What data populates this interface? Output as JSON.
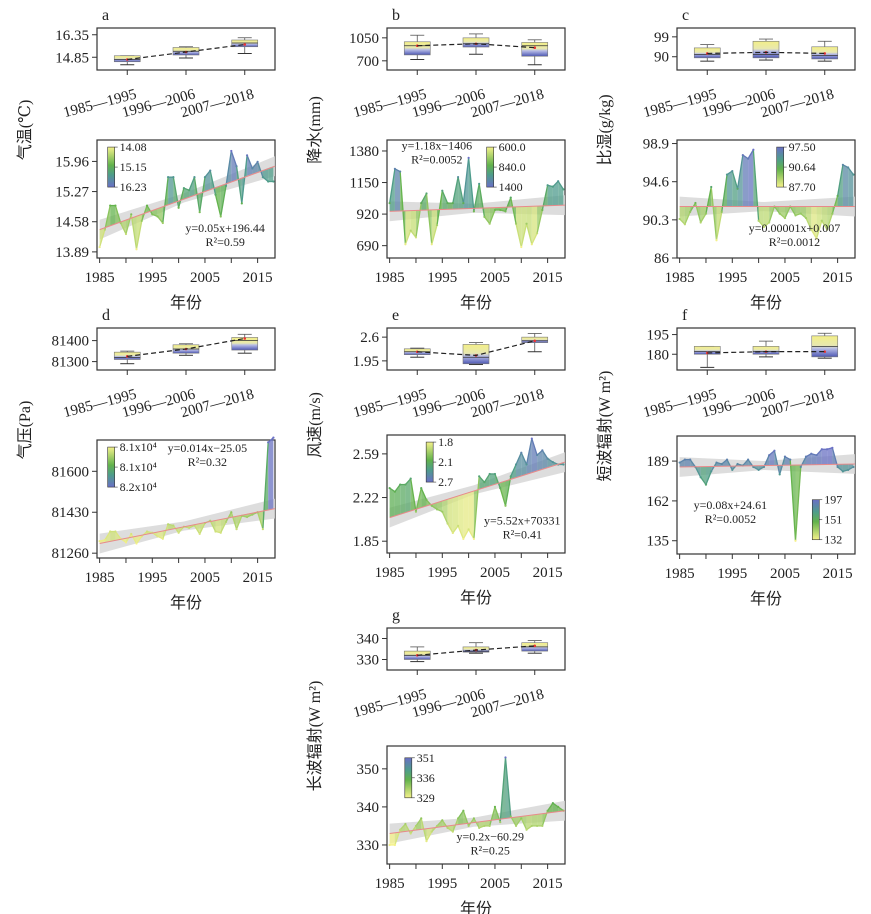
{
  "figure": {
    "xlabel": "年份",
    "period_labels": [
      "1985—1995",
      "1996—2006",
      "2007—2018"
    ],
    "colors": {
      "yellow": "#f3f08a",
      "green": "#5fb24f",
      "teal": "#4f9d8c",
      "blue": "#6a72c8",
      "trend": "#e88a8a",
      "band": "#d7d7d7"
    }
  },
  "chart_data": [
    {
      "panel": "a",
      "type": "line",
      "ylabel": "气温(℃)",
      "box": {
        "yticks": [
          14.85,
          16.35
        ],
        "ylim": [
          14.0,
          16.8
        ],
        "groups": [
          {
            "label": "1985—1995",
            "min": 14.35,
            "q1": 14.55,
            "median": 14.7,
            "q3": 14.95,
            "max": 14.95,
            "mean": 14.7
          },
          {
            "label": "1996—2006",
            "min": 14.8,
            "q1": 15.0,
            "median": 15.25,
            "q3": 15.5,
            "max": 15.55,
            "mean": 15.2
          },
          {
            "label": "2007—2018",
            "min": 15.1,
            "q1": 15.55,
            "median": 15.8,
            "q3": 16.0,
            "max": 16.15,
            "mean": 15.7
          }
        ]
      },
      "x": [
        1985,
        1986,
        1987,
        1988,
        1989,
        1990,
        1991,
        1992,
        1993,
        1994,
        1995,
        1996,
        1997,
        1998,
        1999,
        2000,
        2001,
        2002,
        2003,
        2004,
        2005,
        2006,
        2007,
        2008,
        2009,
        2010,
        2011,
        2012,
        2013,
        2014,
        2015,
        2016,
        2017,
        2018
      ],
      "values": [
        14.0,
        14.4,
        14.95,
        14.95,
        14.55,
        14.3,
        14.75,
        13.95,
        14.6,
        14.95,
        14.75,
        14.7,
        14.55,
        15.6,
        15.6,
        14.9,
        15.35,
        15.3,
        15.6,
        14.8,
        15.6,
        15.75,
        15.2,
        14.7,
        15.4,
        16.2,
        15.85,
        15.0,
        16.1,
        15.8,
        15.95,
        15.6,
        15.5,
        15.5
      ],
      "yticks": [
        13.89,
        14.58,
        15.27,
        15.96
      ],
      "ylim": [
        13.75,
        16.45
      ],
      "trend": {
        "start": 14.4,
        "end": 15.85
      },
      "equation": "y=0.05x+196.44",
      "r2": "R²=0.59",
      "colorbar": [
        "14.08",
        "15.15",
        "16.23"
      ]
    },
    {
      "panel": "b",
      "type": "line",
      "ylabel": "降水(mm)",
      "box": {
        "yticks": [
          700,
          1050
        ],
        "ylim": [
          560,
          1200
        ],
        "groups": [
          {
            "label": "1985—1995",
            "min": 720,
            "q1": 790,
            "median": 930,
            "q3": 990,
            "max": 1090,
            "mean": 930
          },
          {
            "label": "1996—2006",
            "min": 800,
            "q1": 910,
            "median": 960,
            "q3": 1050,
            "max": 1110,
            "mean": 960
          },
          {
            "label": "2007—2018",
            "min": 640,
            "q1": 770,
            "median": 930,
            "q3": 980,
            "max": 1020,
            "mean": 900
          }
        ]
      },
      "x": [
        1985,
        1986,
        1987,
        1988,
        1989,
        1990,
        1991,
        1992,
        1993,
        1994,
        1995,
        1996,
        1997,
        1998,
        1999,
        2000,
        2001,
        2002,
        2003,
        2004,
        2005,
        2006,
        2007,
        2008,
        2009,
        2010,
        2011,
        2012,
        2013,
        2014,
        2015,
        2016,
        2017,
        2018
      ],
      "values": [
        1000,
        1250,
        1230,
        700,
        800,
        750,
        1000,
        1070,
        700,
        840,
        1090,
        1000,
        1000,
        1190,
        1000,
        1330,
        940,
        1140,
        900,
        850,
        950,
        950,
        940,
        1040,
        850,
        680,
        850,
        700,
        780,
        950,
        1130,
        1120,
        1160,
        1100
      ],
      "yticks": [
        690,
        920,
        1150,
        1380
      ],
      "ylim": [
        600,
        1460
      ],
      "trend": {
        "start": 940,
        "end": 985
      },
      "equation": "y=1.18x−1406",
      "r2": "R²=0.0052",
      "colorbar": [
        "600.0",
        "840.0",
        "1400"
      ]
    },
    {
      "panel": "c",
      "type": "line",
      "ylabel": "比湿(g/kg)",
      "box": {
        "yticks": [
          90,
          99
        ],
        "ylim": [
          84,
          103
        ],
        "groups": [
          {
            "label": "1985—1995",
            "min": 88,
            "q1": 89.5,
            "median": 91,
            "q3": 94,
            "max": 95.5,
            "mean": 91.5
          },
          {
            "label": "1996—2006",
            "min": 88.5,
            "q1": 89.5,
            "median": 91,
            "q3": 97,
            "max": 98,
            "mean": 92
          },
          {
            "label": "2007—2018",
            "min": 88,
            "q1": 89,
            "median": 90.5,
            "q3": 94.5,
            "max": 97,
            "mean": 91.5
          }
        ]
      },
      "x": [
        1985,
        1986,
        1987,
        1988,
        1989,
        1990,
        1991,
        1992,
        1993,
        1994,
        1995,
        1996,
        1997,
        1998,
        1999,
        2000,
        2001,
        2002,
        2003,
        2004,
        2005,
        2006,
        2007,
        2008,
        2009,
        2010,
        2011,
        2012,
        2013,
        2014,
        2015,
        2016,
        2017,
        2018
      ],
      "values": [
        90.4,
        89.8,
        91.2,
        92.2,
        90.0,
        91.0,
        94.0,
        88.0,
        91.2,
        95.4,
        95.8,
        93.8,
        97.6,
        97.2,
        98.2,
        90.2,
        89.5,
        90.0,
        91.8,
        91.0,
        90.5,
        91.8,
        90.8,
        91.0,
        90.5,
        89.2,
        88.2,
        90.2,
        89.2,
        91.0,
        93.0,
        96.5,
        96.2,
        95.4
      ],
      "yticks": [
        86.0,
        90.3,
        94.6,
        98.9
      ],
      "ylim": [
        86.0,
        99.3
      ],
      "trend": {
        "start": 91.8,
        "end": 91.8
      },
      "equation": "y=0.00001x+0.007",
      "r2": "R²=0.0012",
      "colorbar": [
        "97.50",
        "90.64",
        "87.70"
      ]
    },
    {
      "panel": "d",
      "type": "line",
      "ylabel": "气压(Pa)",
      "box": {
        "yticks": [
          81300,
          81400
        ],
        "ylim": [
          81260,
          81460
        ],
        "groups": [
          {
            "label": "1985—1995",
            "min": 81290,
            "q1": 81310,
            "median": 81320,
            "q3": 81345,
            "max": 81350,
            "mean": 81325
          },
          {
            "label": "1996—2006",
            "min": 81330,
            "q1": 81340,
            "median": 81360,
            "q3": 81380,
            "max": 81385,
            "mean": 81360
          },
          {
            "label": "2007—2018",
            "min": 81340,
            "q1": 81355,
            "median": 81400,
            "q3": 81415,
            "max": 81430,
            "mean": 81410
          }
        ]
      },
      "x": [
        1985,
        1986,
        1987,
        1988,
        1989,
        1990,
        1991,
        1992,
        1993,
        1994,
        1995,
        1996,
        1997,
        1998,
        1999,
        2000,
        2001,
        2002,
        2003,
        2004,
        2005,
        2006,
        2007,
        2008,
        2009,
        2010,
        2011,
        2012,
        2013,
        2014,
        2015,
        2016,
        2017,
        2018
      ],
      "values": [
        81310,
        81315,
        81350,
        81350,
        81320,
        81305,
        81340,
        81300,
        81330,
        81350,
        81345,
        81330,
        81320,
        81380,
        81375,
        81345,
        81370,
        81365,
        81375,
        81340,
        81385,
        81395,
        81350,
        81345,
        81390,
        81430,
        81360,
        81415,
        81410,
        81420,
        81430,
        81360,
        81720,
        81740
      ],
      "yticks": [
        81260,
        81430,
        81600
      ],
      "ylim": [
        81240,
        81730
      ],
      "trend": {
        "start": 81300,
        "end": 81445
      },
      "equation": "y=0.014x−25.05",
      "r2": "R²=0.32",
      "colorbar": [
        "8.1x10⁴",
        "8.1x10⁴",
        "8.2x10⁴"
      ]
    },
    {
      "panel": "e",
      "type": "line",
      "ylabel": "风速(m/s)",
      "box": {
        "yticks": [
          1.95,
          2.6
        ],
        "ylim": [
          1.7,
          2.85
        ],
        "groups": [
          {
            "label": "1985—1995",
            "min": 2.05,
            "q1": 2.12,
            "median": 2.2,
            "q3": 2.28,
            "max": 2.3,
            "mean": 2.2
          },
          {
            "label": "1996—2006",
            "min": 1.85,
            "q1": 1.87,
            "median": 2.05,
            "q3": 2.4,
            "max": 2.45,
            "mean": 2.1
          },
          {
            "label": "2007—2018",
            "min": 2.2,
            "q1": 2.45,
            "median": 2.5,
            "q3": 2.6,
            "max": 2.7,
            "mean": 2.5
          }
        ]
      },
      "x": [
        1985,
        1986,
        1987,
        1988,
        1989,
        1990,
        1991,
        1992,
        1993,
        1994,
        1995,
        1996,
        1997,
        1998,
        1999,
        2000,
        2001,
        2002,
        2003,
        2004,
        2005,
        2006,
        2007,
        2008,
        2009,
        2010,
        2011,
        2012,
        2013,
        2014,
        2015,
        2016,
        2017,
        2018
      ],
      "values": [
        2.3,
        2.27,
        2.33,
        2.33,
        2.38,
        2.1,
        2.3,
        2.2,
        2.15,
        2.12,
        2.1,
        2.0,
        1.92,
        1.98,
        1.87,
        1.95,
        1.87,
        2.4,
        2.35,
        2.42,
        2.42,
        2.3,
        2.15,
        2.4,
        2.5,
        2.6,
        2.5,
        2.72,
        2.58,
        2.62,
        2.55,
        2.52,
        2.5,
        2.5
      ],
      "yticks": [
        1.85,
        2.22,
        2.59
      ],
      "ylim": [
        1.75,
        2.75
      ],
      "trend": {
        "start": 2.05,
        "end": 2.52
      },
      "equation": "y=5.52x+70331",
      "r2": "R²=0.41",
      "colorbar": [
        "1.8",
        "2.1",
        "2.7"
      ]
    },
    {
      "panel": "f",
      "type": "line",
      "ylabel": "短波辐射(W m²)",
      "box": {
        "yticks": [
          180,
          195
        ],
        "ylim": [
          168,
          200
        ],
        "groups": [
          {
            "label": "1985—1995",
            "min": 170,
            "q1": 180,
            "median": 182,
            "q3": 186,
            "max": 186,
            "mean": 181
          },
          {
            "label": "1996—2006",
            "min": 178,
            "q1": 180,
            "median": 182,
            "q3": 186,
            "max": 190,
            "mean": 182
          },
          {
            "label": "2007—2018",
            "min": 177,
            "q1": 178,
            "median": 186,
            "q3": 194,
            "max": 196,
            "mean": 182
          }
        ]
      },
      "x": [
        1985,
        1986,
        1987,
        1988,
        1989,
        1990,
        1991,
        1992,
        1993,
        1994,
        1995,
        1996,
        1997,
        1998,
        1999,
        2000,
        2001,
        2002,
        2003,
        2004,
        2005,
        2006,
        2007,
        2008,
        2009,
        2010,
        2011,
        2012,
        2013,
        2014,
        2015,
        2016,
        2017,
        2018
      ],
      "values": [
        188,
        190,
        190,
        185,
        178,
        173,
        182,
        188,
        187,
        190,
        183,
        187,
        186,
        190,
        185,
        183,
        185,
        193,
        196,
        180,
        192,
        190,
        135,
        185,
        192,
        194,
        193,
        197,
        197,
        198,
        185,
        182,
        183,
        185
      ],
      "yticks": [
        135,
        162,
        189
      ],
      "ylim": [
        126,
        206
      ],
      "trend": {
        "start": 185,
        "end": 187
      },
      "equation": "y=0.08x+24.61",
      "r2": "R²=0.0052",
      "colorbar": [
        "197",
        "151",
        "132"
      ]
    },
    {
      "panel": "g",
      "type": "line",
      "ylabel": "长波辐射(W m²)",
      "box": {
        "yticks": [
          330,
          340
        ],
        "ylim": [
          325,
          345
        ],
        "groups": [
          {
            "label": "1985—1995",
            "min": 329,
            "q1": 330,
            "median": 332,
            "q3": 334,
            "max": 336,
            "mean": 332
          },
          {
            "label": "1996—2006",
            "min": 333,
            "q1": 333.5,
            "median": 334,
            "q3": 336,
            "max": 338,
            "mean": 334.5
          },
          {
            "label": "2007—2018",
            "min": 333,
            "q1": 334,
            "median": 336,
            "q3": 338,
            "max": 339,
            "mean": 336.5
          }
        ]
      },
      "x": [
        1985,
        1986,
        1987,
        1988,
        1989,
        1990,
        1991,
        1992,
        1993,
        1994,
        1995,
        1996,
        1997,
        1998,
        1999,
        2000,
        2001,
        2002,
        2003,
        2004,
        2005,
        2006,
        2007,
        2008,
        2009,
        2010,
        2011,
        2012,
        2013,
        2014,
        2015,
        2016,
        2017,
        2018
      ],
      "values": [
        330,
        330,
        334,
        335.5,
        333,
        335,
        337,
        331,
        333.5,
        335,
        336.5,
        334.5,
        333.5,
        337,
        339,
        335,
        337,
        334.5,
        335,
        335,
        340,
        336,
        353,
        337.5,
        335,
        337,
        334,
        335,
        335,
        335,
        339,
        341,
        340,
        339
      ],
      "yticks": [
        330,
        340,
        350
      ],
      "ylim": [
        325,
        356
      ],
      "trend": {
        "start": 333,
        "end": 339
      },
      "equation": "y=0.2x−60.29",
      "r2": "R²=0.25",
      "colorbar": [
        "351",
        "336",
        "329"
      ]
    }
  ]
}
